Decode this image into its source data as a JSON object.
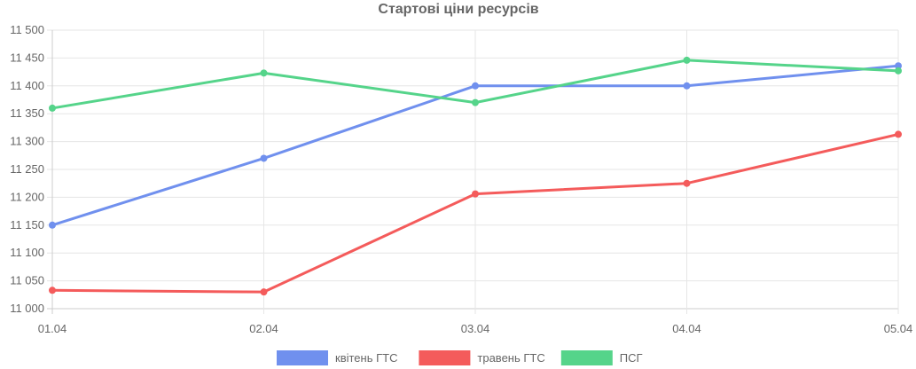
{
  "chart_data": {
    "type": "line",
    "title": "Стартові ціни ресурсів",
    "categories": [
      "01.04",
      "02.04",
      "03.04",
      "04.04",
      "05.04"
    ],
    "ylim": [
      11000,
      11500
    ],
    "ytick_step": 50,
    "ytick_labels": [
      "11 000",
      "11 050",
      "11 100",
      "11 150",
      "11 200",
      "11 250",
      "11 300",
      "11 350",
      "11 400",
      "11 450",
      "11 500"
    ],
    "grid": true,
    "legend_position": "bottom",
    "series": [
      {
        "name": "квітень ГТС",
        "color": "#7090EE",
        "values": [
          11150,
          11270,
          11400,
          11400,
          11436
        ]
      },
      {
        "name": "травень ГТС",
        "color": "#F45B5B",
        "values": [
          11033,
          11030,
          11206,
          11225,
          11313
        ]
      },
      {
        "name": "ПСГ",
        "color": "#55D48A",
        "values": [
          11360,
          11423,
          11370,
          11446,
          11427
        ]
      }
    ]
  }
}
